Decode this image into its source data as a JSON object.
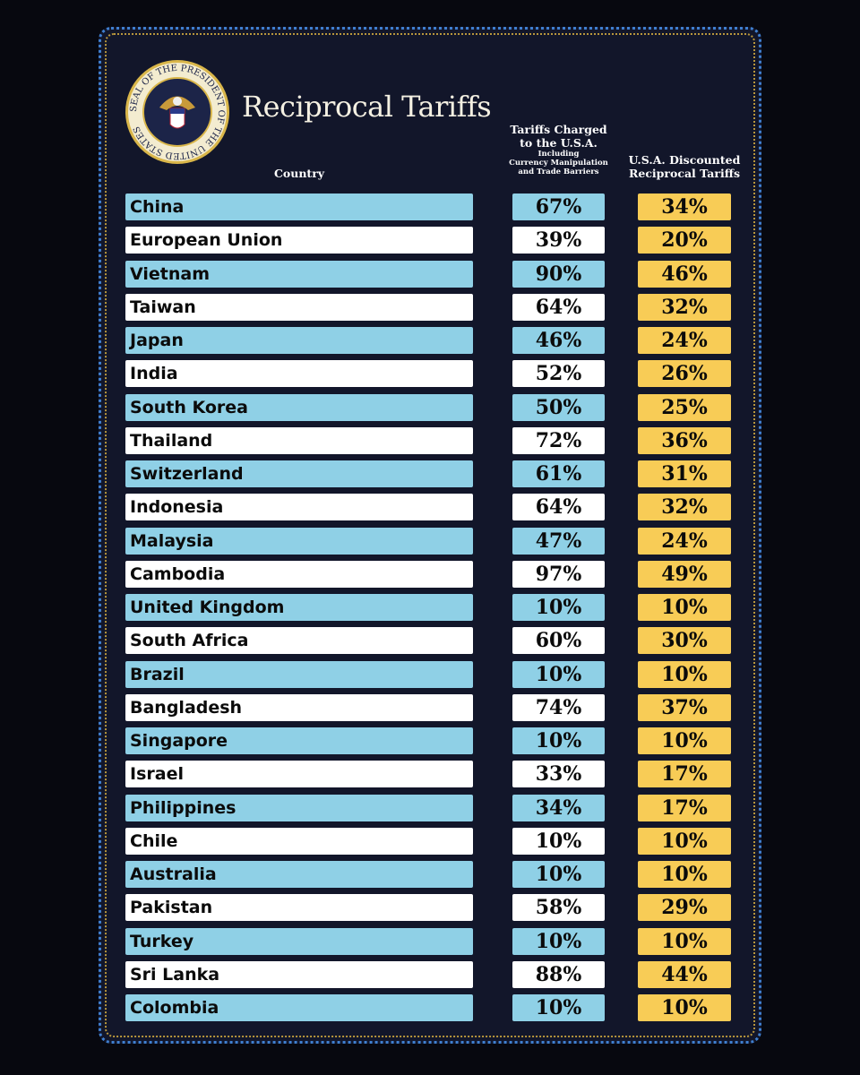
{
  "header": {
    "title": "Reciprocal Tariffs",
    "seal_text": "SEAL OF THE PRESIDENT OF THE UNITED STATES"
  },
  "table": {
    "columns": [
      {
        "lines": [
          "Country"
        ]
      },
      {
        "lines": [
          "Tariffs Charged",
          "to the U.S.A."
        ],
        "sublines": [
          "Including",
          "Currency Manipulation",
          "and Trade Barriers"
        ]
      },
      {
        "lines": [
          "U.S.A. Discounted",
          "Reciprocal Tariffs"
        ]
      }
    ],
    "rows": [
      [
        "China",
        "67%",
        "34%"
      ],
      [
        "European Union",
        "39%",
        "20%"
      ],
      [
        "Vietnam",
        "90%",
        "46%"
      ],
      [
        "Taiwan",
        "64%",
        "32%"
      ],
      [
        "Japan",
        "46%",
        "24%"
      ],
      [
        "India",
        "52%",
        "26%"
      ],
      [
        "South Korea",
        "50%",
        "25%"
      ],
      [
        "Thailand",
        "72%",
        "36%"
      ],
      [
        "Switzerland",
        "61%",
        "31%"
      ],
      [
        "Indonesia",
        "64%",
        "32%"
      ],
      [
        "Malaysia",
        "47%",
        "24%"
      ],
      [
        "Cambodia",
        "97%",
        "49%"
      ],
      [
        "United Kingdom",
        "10%",
        "10%"
      ],
      [
        "South Africa",
        "60%",
        "30%"
      ],
      [
        "Brazil",
        "10%",
        "10%"
      ],
      [
        "Bangladesh",
        "74%",
        "37%"
      ],
      [
        "Singapore",
        "10%",
        "10%"
      ],
      [
        "Israel",
        "33%",
        "17%"
      ],
      [
        "Philippines",
        "34%",
        "17%"
      ],
      [
        "Chile",
        "10%",
        "10%"
      ],
      [
        "Australia",
        "10%",
        "10%"
      ],
      [
        "Pakistan",
        "58%",
        "29%"
      ],
      [
        "Turkey",
        "10%",
        "10%"
      ],
      [
        "Sri Lanka",
        "88%",
        "44%"
      ],
      [
        "Colombia",
        "10%",
        "10%"
      ]
    ]
  }
}
